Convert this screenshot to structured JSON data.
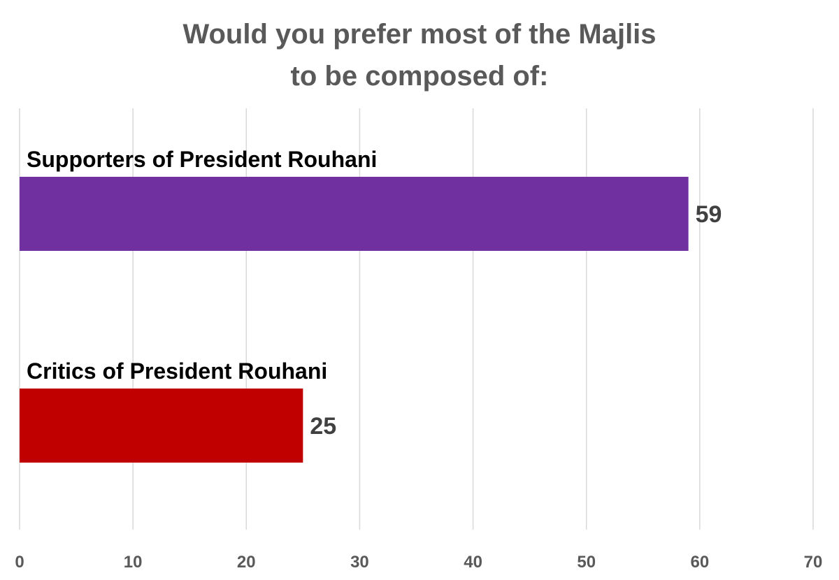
{
  "chart_data": {
    "type": "bar",
    "orientation": "horizontal",
    "title": "Would you prefer most of the Majlis to be composed of:",
    "title_lines": [
      "Would you prefer most of the Majlis",
      "to be composed of:"
    ],
    "xlabel": "",
    "ylabel": "",
    "xlim": [
      0,
      70
    ],
    "x_ticks": [
      0,
      10,
      20,
      30,
      40,
      50,
      60,
      70
    ],
    "grid": true,
    "legend": "none",
    "categories": [
      "Supporters of President Rouhani",
      "Critics of President Rouhani"
    ],
    "values": [
      59,
      25
    ],
    "colors": [
      "#7030A0",
      "#C00000"
    ],
    "data_labels": [
      "59",
      "25"
    ]
  }
}
